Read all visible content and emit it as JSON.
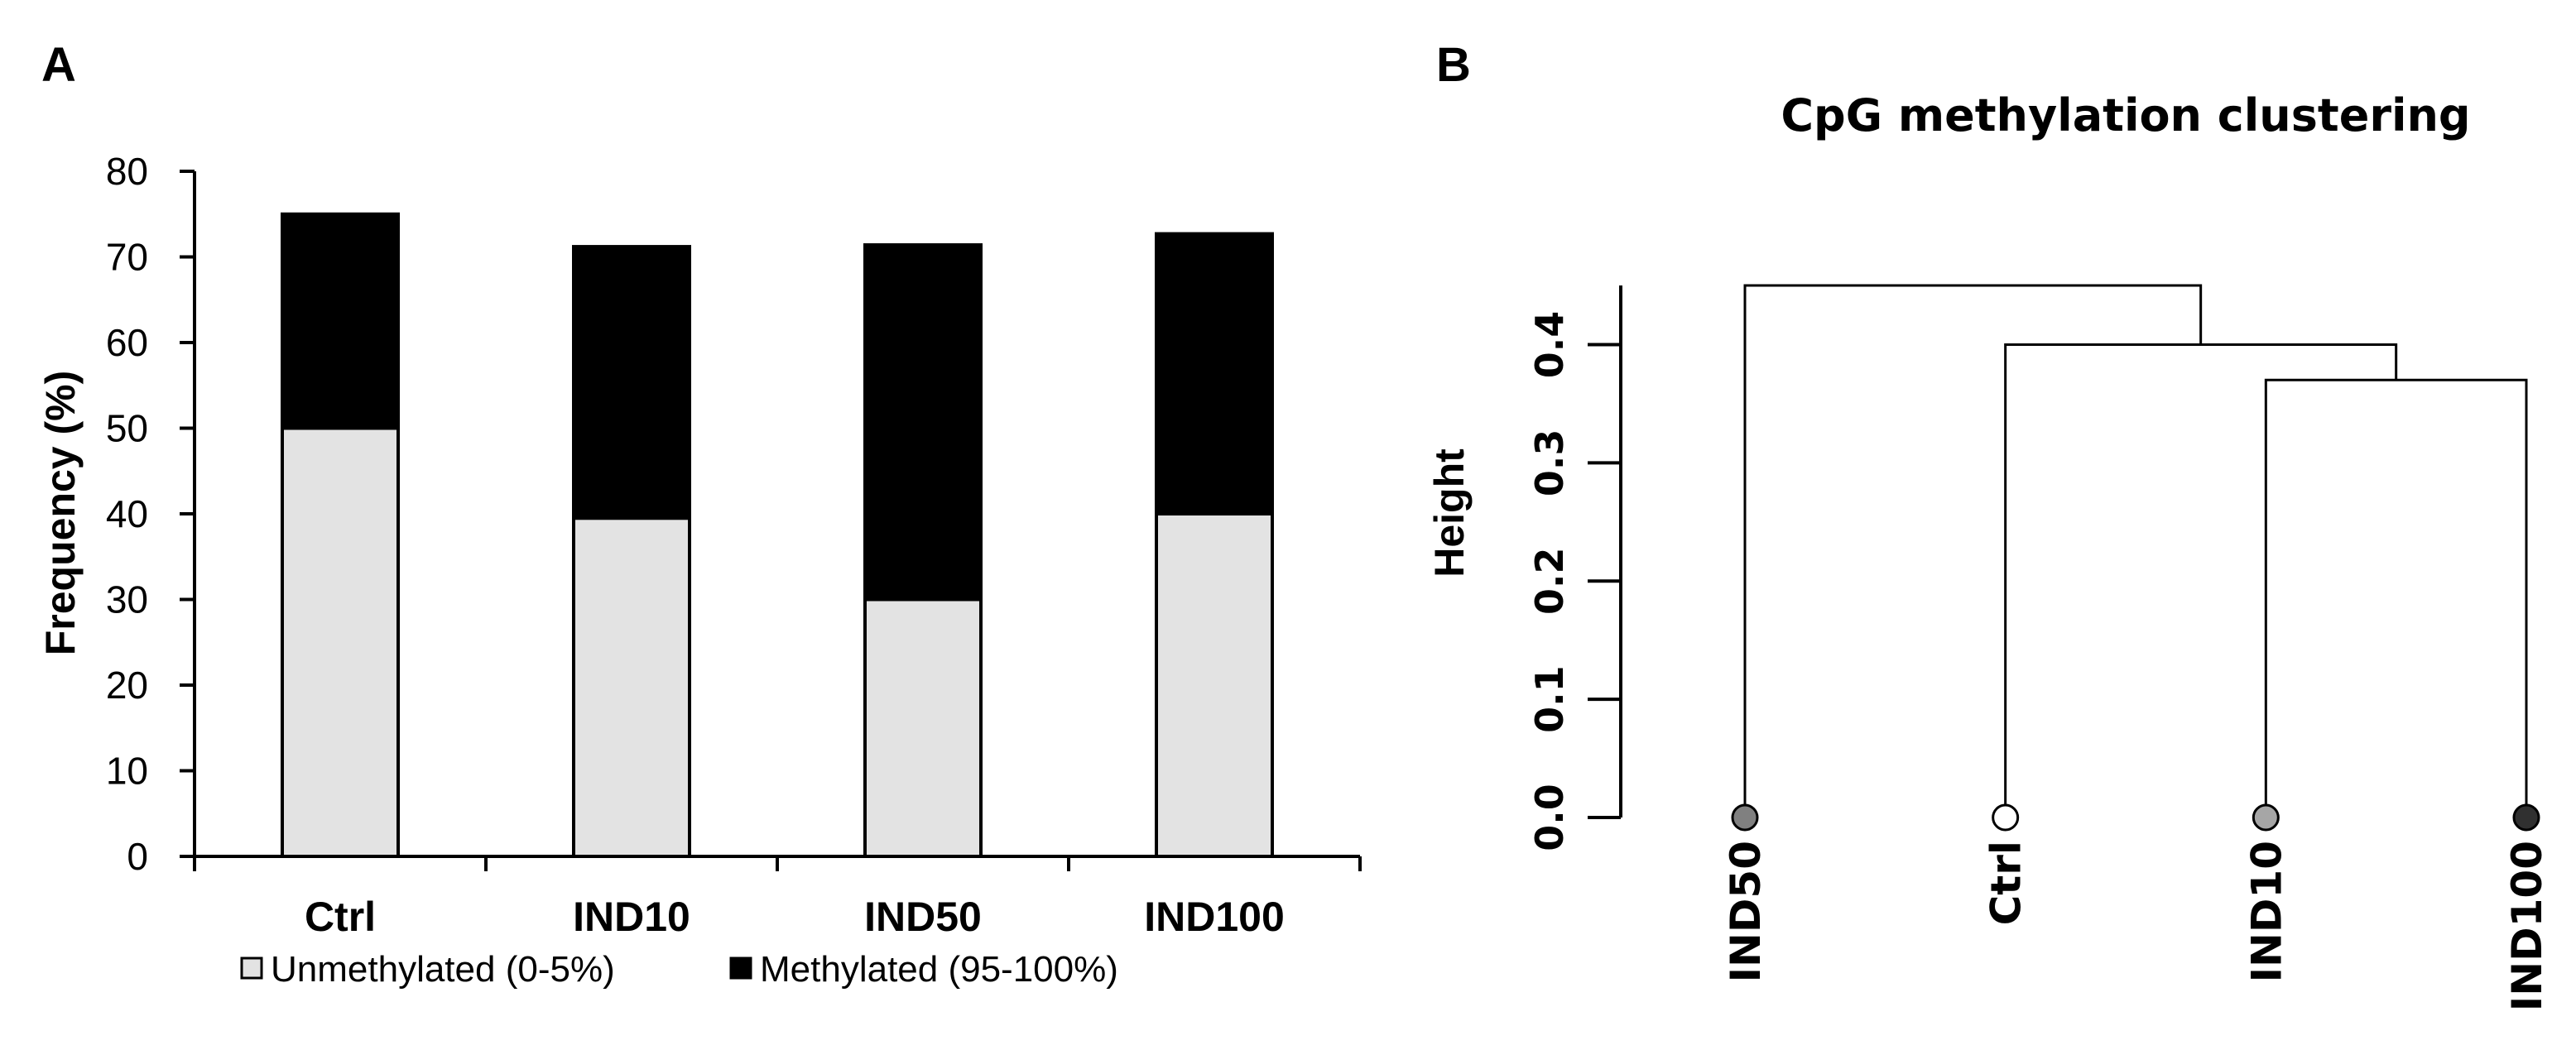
{
  "chart_data": [
    {
      "panel": "A",
      "type": "bar",
      "stacked": true,
      "categories": [
        "Ctrl",
        "IND10",
        "IND50",
        "IND100"
      ],
      "series": [
        {
          "name": "Unmethylated (0-5%)",
          "values": [
            50,
            39.5,
            30,
            40
          ],
          "color": "#e3e3e3"
        },
        {
          "name": "Methylated (95-100%)",
          "values": [
            25,
            31.7,
            41.4,
            32.7
          ],
          "color": "#000000"
        }
      ],
      "title": "",
      "xlabel": "",
      "ylabel": "Frequency (%)",
      "ylim": [
        0,
        80
      ],
      "yticks": [
        "0",
        "10",
        "20",
        "30",
        "40",
        "50",
        "60",
        "70",
        "80"
      ],
      "legend_position": "bottom"
    },
    {
      "panel": "B",
      "type": "dendrogram",
      "title": "CpG methylation clustering",
      "ylabel": "Height",
      "ylim": [
        0,
        0.45
      ],
      "yticks": [
        "0.0",
        "0.1",
        "0.2",
        "0.3",
        "0.4"
      ],
      "leaves": [
        {
          "label": "IND50",
          "color": "#808080"
        },
        {
          "label": "Ctrl",
          "color": "#ffffff"
        },
        {
          "label": "IND10",
          "color": "#a6a6a6"
        },
        {
          "label": "IND100",
          "color": "#303030"
        }
      ],
      "merges": [
        {
          "left": "leaf:2",
          "right": "leaf:3",
          "height": 0.37
        },
        {
          "left": "leaf:1",
          "right": "node:0",
          "height": 0.4
        },
        {
          "left": "leaf:0",
          "right": "node:1",
          "height": 0.45
        }
      ]
    }
  ]
}
